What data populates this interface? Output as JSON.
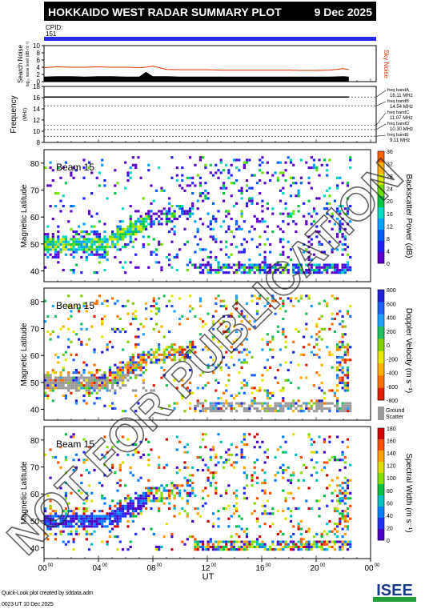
{
  "header": {
    "title": "HOKKAIDO WEST RADAR SUMMARY PLOT",
    "date": "9 Dec 2025",
    "cpid_label": "CPID:",
    "cpid_value": "151"
  },
  "watermark": "NOT FOR PUBLICATION",
  "colors": {
    "header_bg": "#000000",
    "cpid_bar": "#2a2aee",
    "sky_noise": "#dd3300",
    "search_noise": "#000000",
    "ground_scatter": "#999999"
  },
  "chart_data": [
    {
      "type": "area",
      "name": "noise",
      "ylabel": "Search Noise",
      "ylabel_sub": "log₁₀ noise level (dB·m⁻¹)",
      "ylabel_right": "Sky Noise",
      "ylim": [
        0,
        10
      ],
      "yticks": [
        0,
        2,
        4,
        6,
        8,
        10
      ],
      "x_hours": [
        0,
        1,
        2,
        3,
        4,
        5,
        6,
        7,
        7.5,
        8,
        9,
        10,
        11,
        12,
        13,
        14,
        15,
        16,
        17,
        18,
        19,
        20,
        21,
        22,
        22.4
      ],
      "sky_noise": [
        3.9,
        4.1,
        4.0,
        4.0,
        4.1,
        4.0,
        4.0,
        3.9,
        4.0,
        4.3,
        3.4,
        3.3,
        3.3,
        3.3,
        3.2,
        3.2,
        3.2,
        3.2,
        3.2,
        3.2,
        3.1,
        3.1,
        3.2,
        3.6,
        3.4
      ],
      "search_noise": [
        1.4,
        1.5,
        1.5,
        1.4,
        1.5,
        1.5,
        1.4,
        1.4,
        2.7,
        1.5,
        1.5,
        1.4,
        1.4,
        1.4,
        1.4,
        1.4,
        1.4,
        1.4,
        1.4,
        1.4,
        1.4,
        1.4,
        1.4,
        1.5,
        1.4
      ]
    },
    {
      "type": "line",
      "name": "frequency",
      "ylabel": "Frequency",
      "yunit": "(MHz)",
      "ylim": [
        8,
        18
      ],
      "yticks": [
        8,
        10,
        12,
        14,
        16,
        18
      ],
      "frequency_mhz": 16.1,
      "bands": [
        {
          "label": "freq bandA",
          "value": "16.11 MHz",
          "mhz": 16.11
        },
        {
          "label": "freq bandB",
          "value": "14.54 MHz",
          "mhz": 14.54
        },
        {
          "label": "freq bandC",
          "value": "11.07 MHz",
          "mhz": 11.07
        },
        {
          "label": "freq bandD",
          "value": "10.30 MHz",
          "mhz": 10.3
        },
        {
          "label": "freq bandE",
          "value": "9.11 MHz",
          "mhz": 9.11
        }
      ]
    },
    {
      "type": "heatmap",
      "name": "power",
      "beam": "Beam 15",
      "ylabel": "Magnetic Latitude",
      "ylim": [
        36,
        85
      ],
      "yticks": [
        40,
        50,
        60,
        70,
        80
      ],
      "colorbar_label": "Backscatter Power (dB)",
      "colorbar_ticks": [
        0,
        4,
        8,
        12,
        16,
        20,
        24,
        28,
        32,
        36
      ],
      "vmin": 0,
      "vmax": 36
    },
    {
      "type": "heatmap",
      "name": "velocity",
      "beam": "Beam 15",
      "ylabel": "Magnetic Latitude",
      "ylim": [
        36,
        85
      ],
      "yticks": [
        40,
        50,
        60,
        70,
        80
      ],
      "colorbar_label": "Doppler Velocity (m s⁻¹)",
      "colorbar_ticks": [
        -800,
        -600,
        -400,
        -200,
        0,
        200,
        400,
        600,
        800
      ],
      "vmin": -800,
      "vmax": 800,
      "ground_scatter_label": [
        "Ground",
        "Scatter"
      ]
    },
    {
      "type": "heatmap",
      "name": "width",
      "beam": "Beam 15",
      "ylabel": "Magnetic Latitude",
      "ylim": [
        36,
        85
      ],
      "yticks": [
        40,
        50,
        60,
        70,
        80
      ],
      "colorbar_label": "Spectral Width (m s⁻¹)",
      "colorbar_ticks": [
        0,
        20,
        40,
        60,
        80,
        100,
        120,
        140,
        160,
        180
      ],
      "vmin": 0,
      "vmax": 180
    }
  ],
  "xaxis": {
    "label": "UT",
    "ticks": [
      {
        "h": "00",
        "m": "00",
        "hour": 0
      },
      {
        "h": "04",
        "m": "00",
        "hour": 4
      },
      {
        "h": "08",
        "m": "00",
        "hour": 8
      },
      {
        "h": "12",
        "m": "00",
        "hour": 12
      },
      {
        "h": "16",
        "m": "00",
        "hour": 16
      },
      {
        "h": "20",
        "m": "00",
        "hour": 20
      },
      {
        "h": "00",
        "m": "00",
        "hour": 24
      }
    ]
  },
  "footer": {
    "line1": "Quick-Look plot created by sddata.adm",
    "line2": "0023 UT 10 Dec 2025"
  },
  "logo": {
    "text": "ISEE",
    "colors": [
      "#1a3a8a",
      "#22a038",
      "#f08a00"
    ]
  }
}
